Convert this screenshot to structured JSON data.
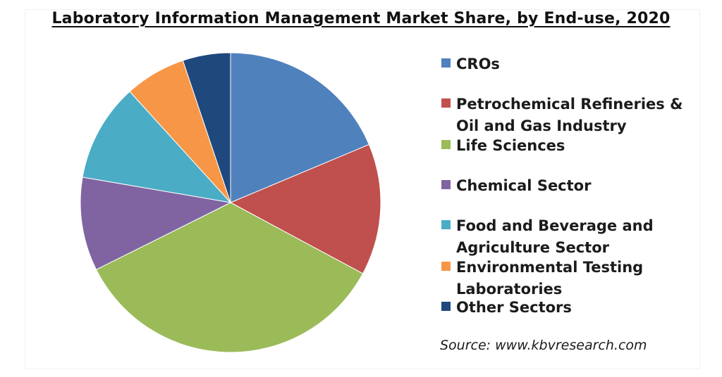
{
  "chart_data": {
    "type": "pie",
    "title": "Laboratory Information Management Market Share, by End-use, 2020",
    "legend_position": "right",
    "series": [
      {
        "name": "CROs",
        "value": 19.6,
        "color": "#4f81bd"
      },
      {
        "name": "Petrochemical Refineries & Oil and Gas Industry",
        "value": 14.9,
        "color": "#c0504d"
      },
      {
        "name": "Life Sciences",
        "value": 36.5,
        "color": "#9bbb59"
      },
      {
        "name": "Chemical Sector",
        "value": 10.6,
        "color": "#8064a2"
      },
      {
        "name": "Food and Beverage and Agriculture Sector",
        "value": 11.1,
        "color": "#4bacc6"
      },
      {
        "name": "Environmental Testing Laboratories",
        "value": 6.9,
        "color": "#f79646"
      },
      {
        "name": "Other Sectors",
        "value": 5.4,
        "color": "#1f497d"
      }
    ],
    "source": "Source: www.kbvresearch.com"
  }
}
